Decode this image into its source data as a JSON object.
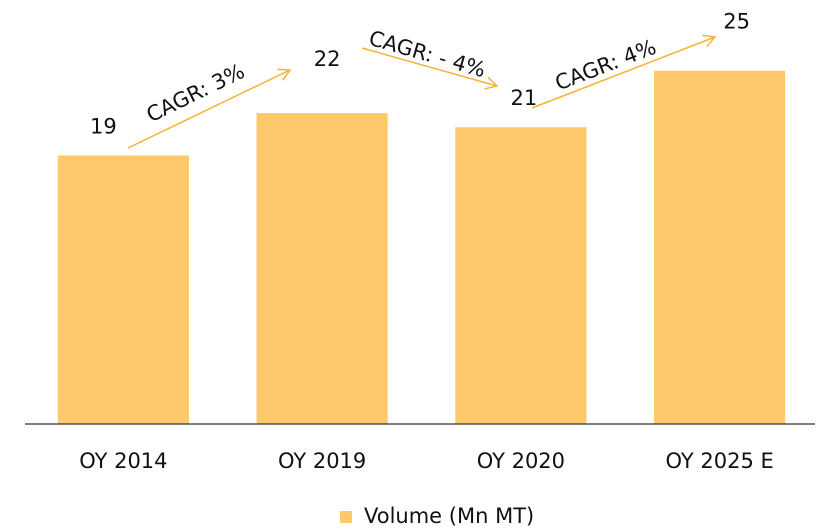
{
  "chart_data": {
    "type": "bar",
    "categories": [
      "OY 2014",
      "OY 2019",
      "OY 2020",
      "OY 2025 E"
    ],
    "values": [
      19,
      22,
      21,
      25
    ],
    "color": "#fdc96b",
    "ylim": [
      0,
      30
    ],
    "series_name": "Volume (Mn MT)",
    "annotations": [
      "CAGR: 3%",
      "CAGR: - 4%",
      "CAGR: 4%"
    ]
  }
}
